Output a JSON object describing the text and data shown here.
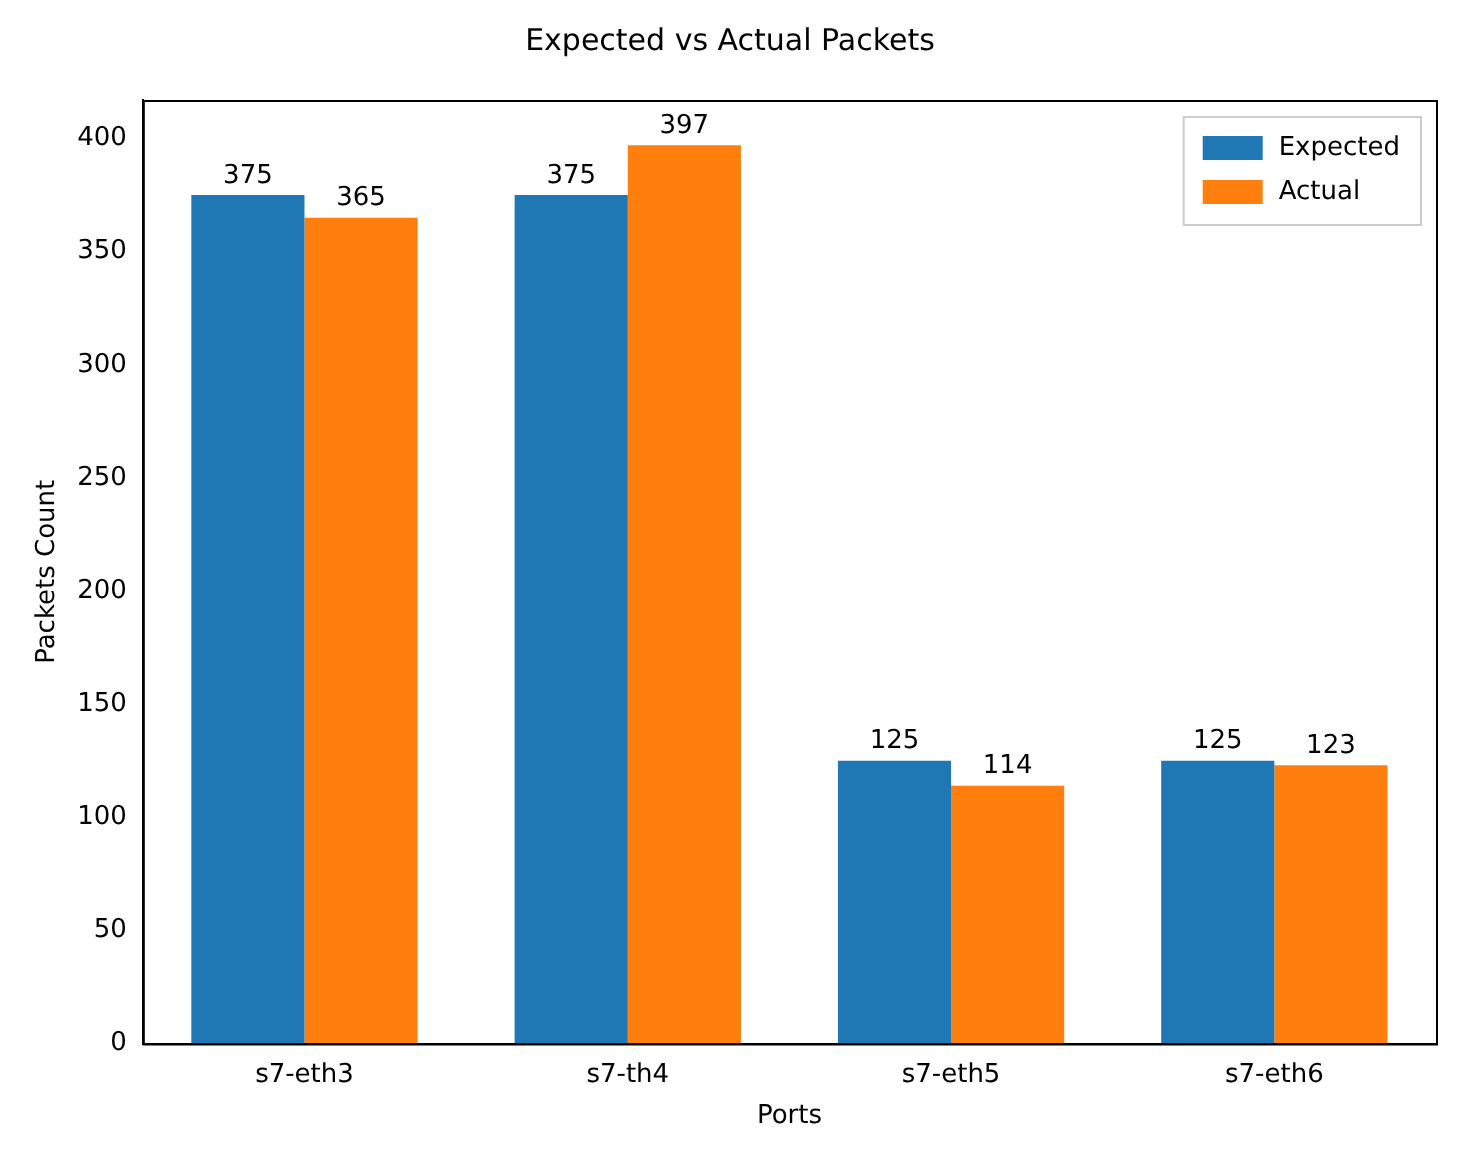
{
  "chart_data": {
    "type": "bar",
    "title": "Expected vs Actual Packets",
    "xlabel": "Ports",
    "ylabel": "Packets Count",
    "categories": [
      "s7-eth3",
      "s7-th4",
      "s7-eth5",
      "s7-eth6"
    ],
    "series": [
      {
        "name": "Expected",
        "color": "#1f77b4",
        "values": [
          375,
          375,
          125,
          125
        ]
      },
      {
        "name": "Actual",
        "color": "#ff7f0e",
        "values": [
          365,
          397,
          114,
          123
        ]
      }
    ],
    "ylim": [
      0,
      417
    ],
    "yticks": [
      0,
      50,
      100,
      150,
      200,
      250,
      300,
      350,
      400
    ],
    "grid": false,
    "legend": "top right",
    "data_labels": true
  }
}
